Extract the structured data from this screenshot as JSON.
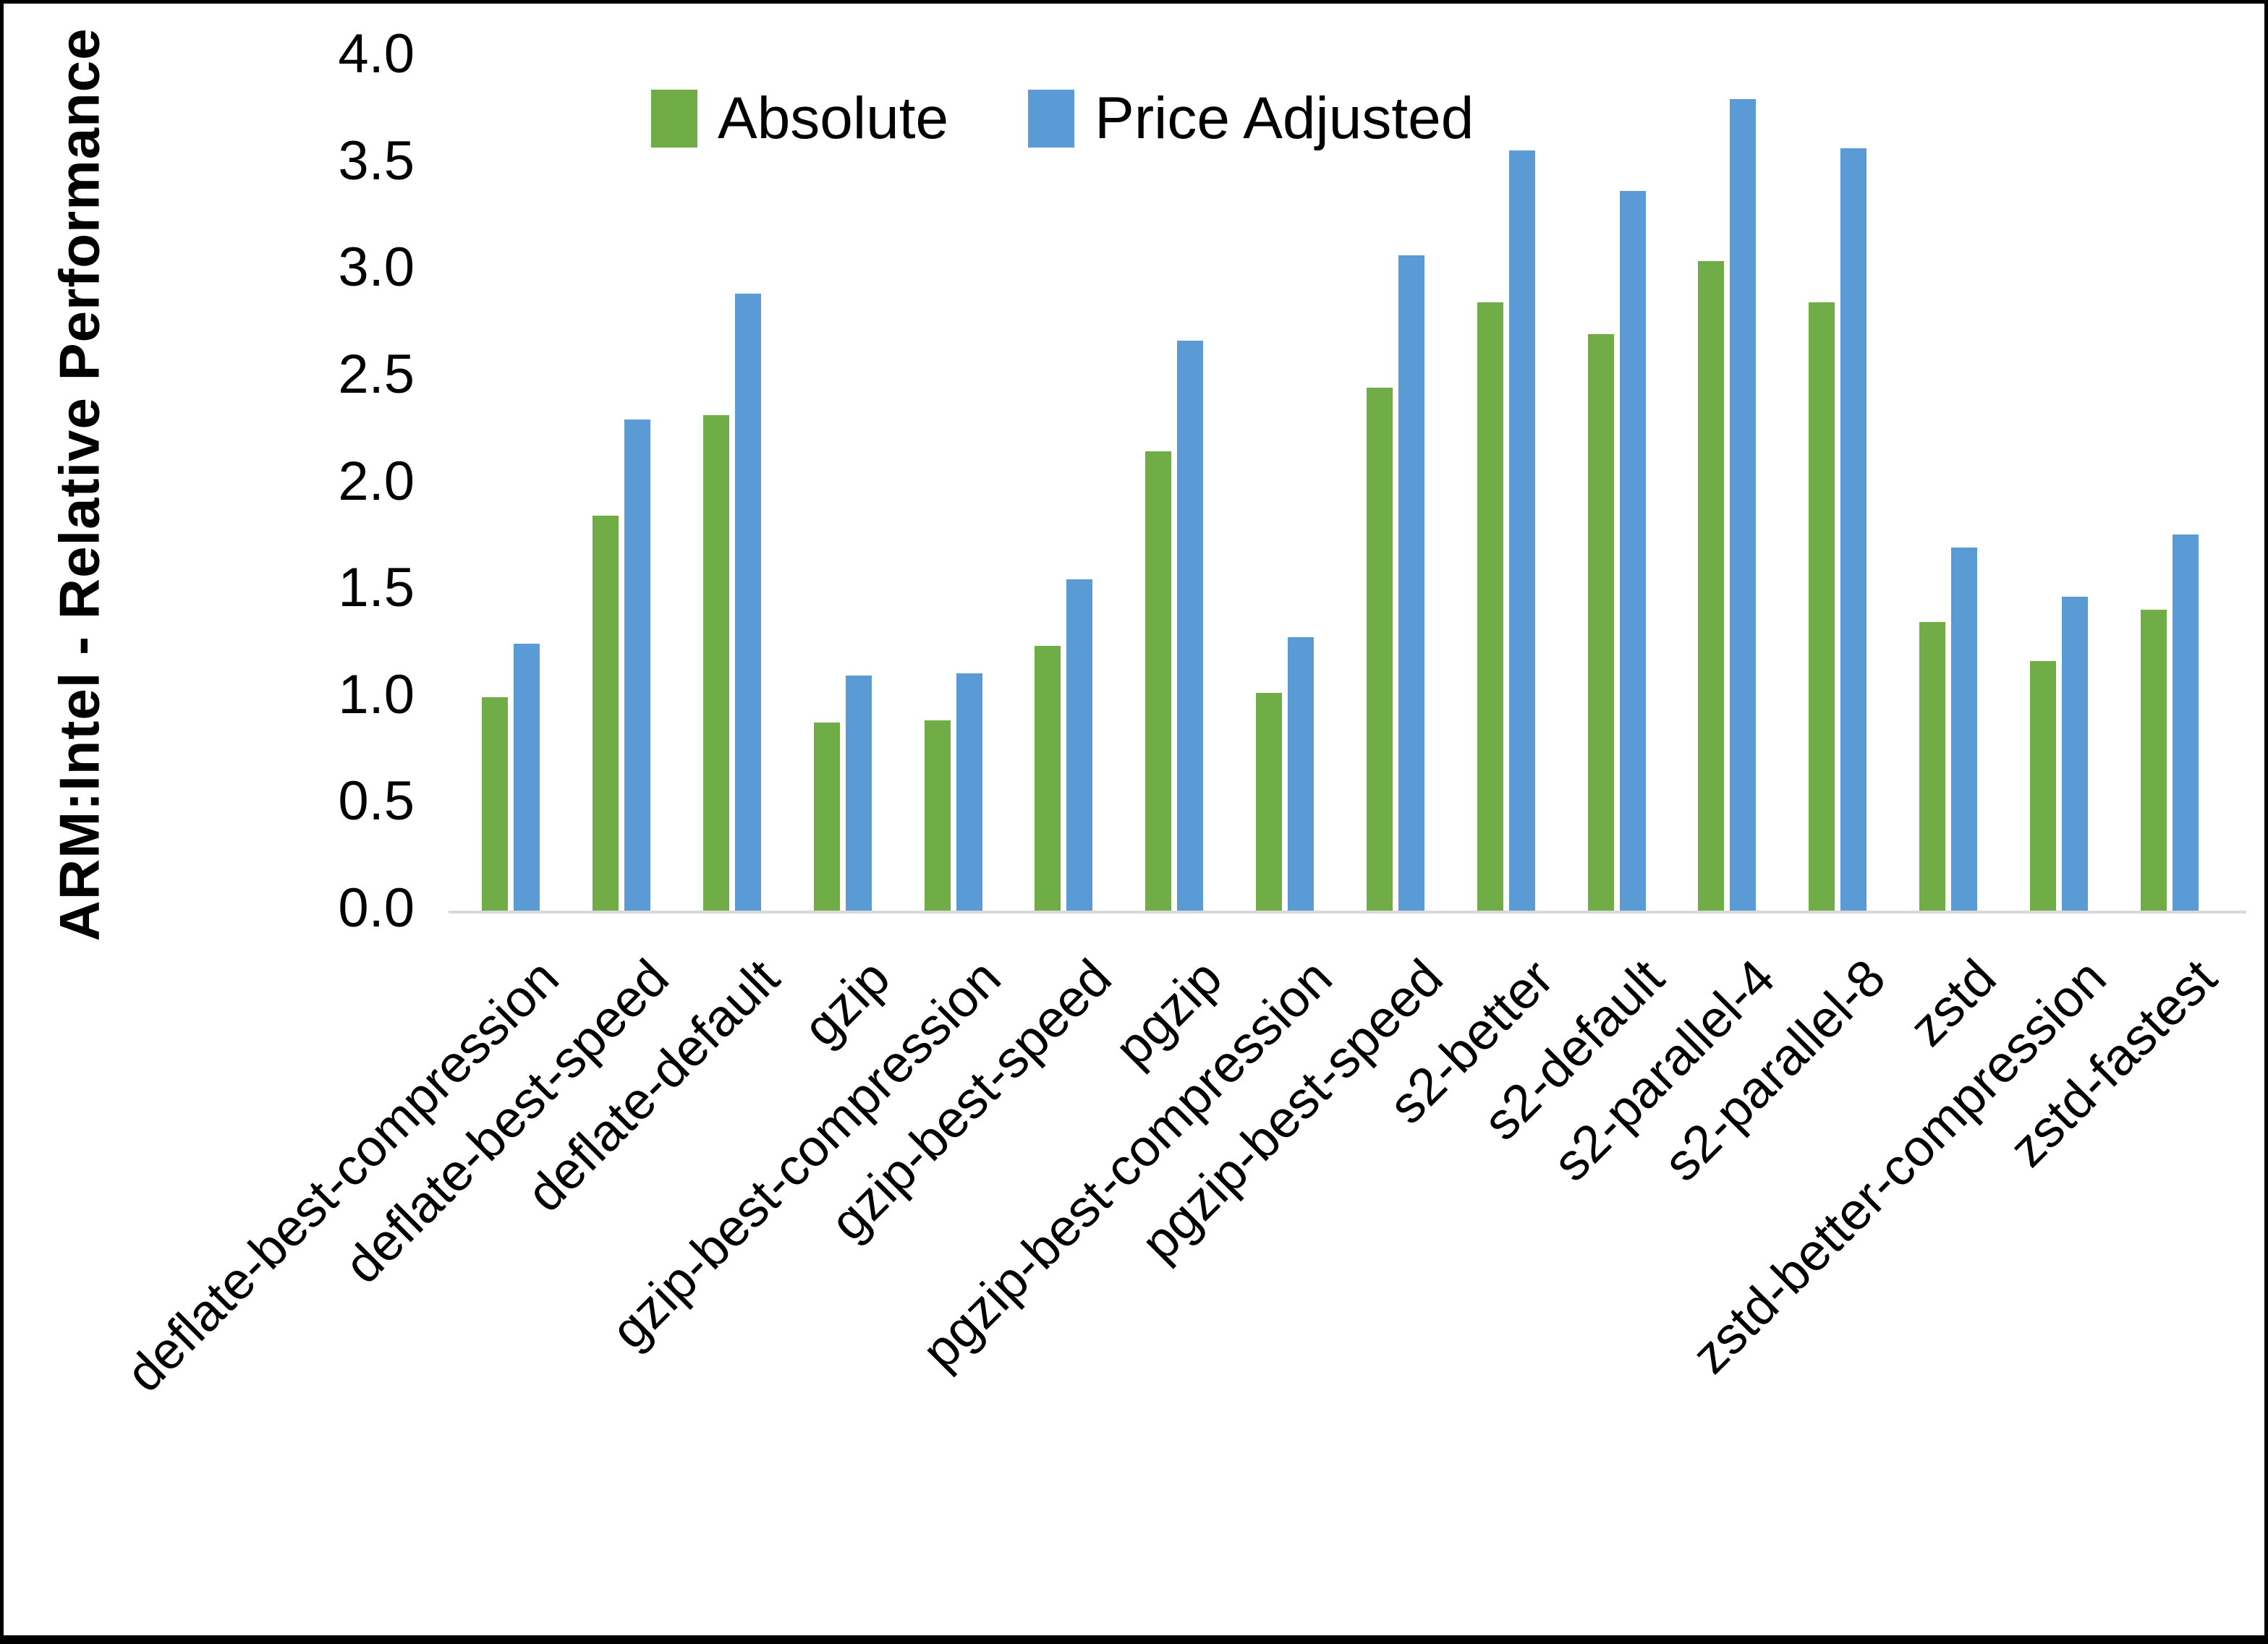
{
  "figure": {
    "background": "#ffffff",
    "frame_color": "#000000",
    "axis_line_color": "#d9d9d9",
    "text_color": "#000000"
  },
  "chart_data": {
    "type": "bar",
    "title": "",
    "xlabel": "",
    "ylabel": "ARM:Intel - Relative Performance",
    "ylim": [
      0.0,
      4.0
    ],
    "ytick_step": 0.5,
    "yticks": [
      "0.0",
      "0.5",
      "1.0",
      "1.5",
      "2.0",
      "2.5",
      "3.0",
      "3.5",
      "4.0"
    ],
    "grid": false,
    "legend_position": "top-center",
    "categories": [
      "deflate-best-compression",
      "deflate-best-speed",
      "deflate-default",
      "gzip",
      "gzip-best-compression",
      "gzip-best-speed",
      "pgzip",
      "pgzip-best-compression",
      "pgzip-best-speed",
      "s2-better",
      "s2-default",
      "s2-parallel-4",
      "s2-parallel-8",
      "zstd",
      "zstd-better-compression",
      "zstd-fastest"
    ],
    "series": [
      {
        "name": "Absolute",
        "color": "#70AD47",
        "values": [
          1.0,
          1.85,
          2.32,
          0.88,
          0.89,
          1.24,
          2.15,
          1.02,
          2.45,
          2.85,
          2.7,
          3.04,
          2.85,
          1.35,
          1.17,
          1.41
        ]
      },
      {
        "name": "Price Adjusted",
        "color": "#5B9BD5",
        "values": [
          1.25,
          2.3,
          2.89,
          1.1,
          1.11,
          1.55,
          2.67,
          1.28,
          3.07,
          3.56,
          3.37,
          3.8,
          3.57,
          1.7,
          1.47,
          1.76
        ]
      }
    ]
  }
}
